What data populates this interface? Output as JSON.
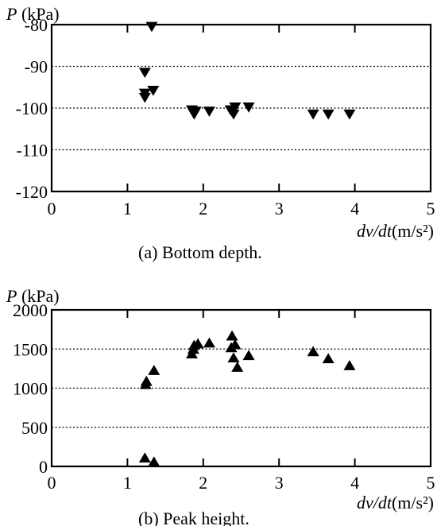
{
  "chart_data": [
    {
      "id": "a",
      "type": "scatter",
      "title": "",
      "ylabel": "P (kPa)",
      "xlabel": "dv/dt(m/s²)",
      "caption": "(a)  Bottom depth.",
      "xlim": [
        0,
        5
      ],
      "ylim": [
        -120,
        -80
      ],
      "xticks": [
        0,
        1,
        2,
        3,
        4,
        5
      ],
      "xtick_labels": [
        "0",
        "1",
        "2",
        "3",
        "4",
        "5"
      ],
      "yticks": [
        -80,
        -90,
        -100,
        -110,
        -120
      ],
      "ytick_labels": [
        "-80",
        "-90",
        "-100",
        "-110",
        "-120"
      ],
      "grid": "horizontal dotted",
      "marker": "triangle-down",
      "series": [
        {
          "points": [
            [
              1.32,
              -80.5
            ],
            [
              1.23,
              -91.5
            ],
            [
              1.34,
              -95.8
            ],
            [
              1.23,
              -96.5
            ],
            [
              1.23,
              -97.5
            ],
            [
              1.85,
              -100.5
            ],
            [
              1.88,
              -101.5
            ],
            [
              1.9,
              -100.8
            ],
            [
              2.08,
              -100.8
            ],
            [
              2.36,
              -100.5
            ],
            [
              2.4,
              -101.5
            ],
            [
              2.42,
              -99.8
            ],
            [
              2.6,
              -99.8
            ],
            [
              3.45,
              -101.5
            ],
            [
              3.65,
              -101.5
            ],
            [
              3.93,
              -101.5
            ]
          ]
        }
      ]
    },
    {
      "id": "b",
      "type": "scatter",
      "title": "",
      "ylabel": "P (kPa)",
      "xlabel": "dv/dt(m/s²)",
      "caption": "(b)  Peak height.",
      "xlim": [
        0,
        5
      ],
      "ylim": [
        0,
        2000
      ],
      "xticks": [
        0,
        1,
        2,
        3,
        4,
        5
      ],
      "xtick_labels": [
        "0",
        "1",
        "2",
        "3",
        "4",
        "5"
      ],
      "yticks": [
        2000,
        1500,
        1000,
        500,
        0
      ],
      "ytick_labels": [
        "2000",
        "1500",
        "1000",
        "500",
        "0"
      ],
      "grid": "horizontal dotted",
      "marker": "triangle-up",
      "series": [
        {
          "points": [
            [
              1.23,
              110
            ],
            [
              1.35,
              60
            ],
            [
              1.24,
              1050
            ],
            [
              1.25,
              1090
            ],
            [
              1.35,
              1230
            ],
            [
              1.85,
              1440
            ],
            [
              1.87,
              1500
            ],
            [
              1.88,
              1550
            ],
            [
              1.93,
              1570
            ],
            [
              2.08,
              1580
            ],
            [
              2.37,
              1520
            ],
            [
              2.38,
              1670
            ],
            [
              2.4,
              1390
            ],
            [
              2.42,
              1560
            ],
            [
              2.45,
              1270
            ],
            [
              2.6,
              1420
            ],
            [
              3.45,
              1470
            ],
            [
              3.65,
              1380
            ],
            [
              3.93,
              1290
            ]
          ]
        }
      ]
    }
  ]
}
